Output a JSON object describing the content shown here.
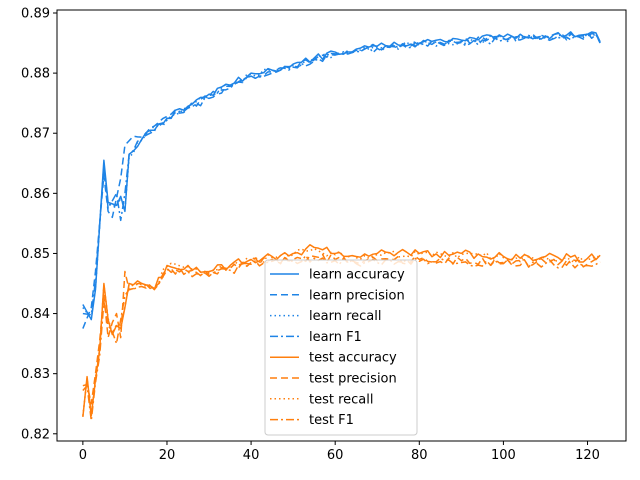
{
  "chart_data": {
    "type": "line",
    "title": "",
    "xlabel": "",
    "ylabel": "",
    "xlim": [
      -6.15,
      129.15
    ],
    "ylim": [
      0.8188,
      0.8905
    ],
    "xticks": [
      0,
      20,
      40,
      60,
      80,
      100,
      120
    ],
    "yticks": [
      0.82,
      0.83,
      0.84,
      0.85,
      0.86,
      0.87,
      0.88,
      0.89
    ],
    "xtick_labels": [
      "0",
      "20",
      "40",
      "60",
      "80",
      "100",
      "120"
    ],
    "ytick_labels": [
      "0.82",
      "0.83",
      "0.84",
      "0.85",
      "0.86",
      "0.87",
      "0.88",
      "0.89"
    ],
    "grid": false,
    "legend_position": "lower-center",
    "x_range": [
      0,
      123
    ],
    "series": [
      {
        "name": "learn accuracy",
        "group": "learn",
        "color": "#1f84e6",
        "dash": "solid",
        "seed": 1,
        "anchors": [
          [
            0,
            0.8415
          ],
          [
            2,
            0.839
          ],
          [
            3,
            0.844
          ],
          [
            5,
            0.8655
          ],
          [
            6,
            0.8585
          ],
          [
            8,
            0.858
          ],
          [
            9,
            0.8595
          ],
          [
            10,
            0.857
          ],
          [
            11,
            0.8665
          ],
          [
            14,
            0.869
          ],
          [
            16,
            0.8705
          ],
          [
            20,
            0.8725
          ],
          [
            25,
            0.8745
          ],
          [
            30,
            0.8765
          ],
          [
            35,
            0.878
          ],
          [
            40,
            0.88
          ],
          [
            45,
            0.8805
          ],
          [
            50,
            0.8815
          ],
          [
            55,
            0.8825
          ],
          [
            60,
            0.8835
          ],
          [
            65,
            0.884
          ],
          [
            70,
            0.8845
          ],
          [
            80,
            0.885
          ],
          [
            90,
            0.8855
          ],
          [
            100,
            0.886
          ],
          [
            110,
            0.8862
          ],
          [
            118,
            0.8863
          ],
          [
            122,
            0.8867
          ],
          [
            123,
            0.8852
          ]
        ]
      },
      {
        "name": "learn precision",
        "group": "learn",
        "color": "#1f84e6",
        "dash": "7,4",
        "seed": 2,
        "anchors": [
          [
            0,
            0.8375
          ],
          [
            2,
            0.841
          ],
          [
            3,
            0.847
          ],
          [
            5,
            0.863
          ],
          [
            6,
            0.857
          ],
          [
            7,
            0.856
          ],
          [
            9,
            0.8625
          ],
          [
            10,
            0.868
          ],
          [
            12,
            0.8695
          ],
          [
            15,
            0.87
          ],
          [
            18,
            0.8718
          ],
          [
            20,
            0.8728
          ],
          [
            25,
            0.8742
          ],
          [
            30,
            0.8762
          ],
          [
            35,
            0.8778
          ],
          [
            40,
            0.8795
          ],
          [
            45,
            0.8802
          ],
          [
            50,
            0.8812
          ],
          [
            55,
            0.8822
          ],
          [
            60,
            0.8832
          ],
          [
            65,
            0.8838
          ],
          [
            70,
            0.8843
          ],
          [
            80,
            0.8848
          ],
          [
            90,
            0.8852
          ],
          [
            100,
            0.8857
          ],
          [
            110,
            0.886
          ],
          [
            118,
            0.8862
          ],
          [
            122,
            0.8865
          ],
          [
            123,
            0.885
          ]
        ]
      },
      {
        "name": "learn recall",
        "group": "learn",
        "color": "#1f84e6",
        "dash": "1.5,3",
        "seed": 3,
        "anchors": [
          [
            0,
            0.841
          ],
          [
            2,
            0.8392
          ],
          [
            3,
            0.8442
          ],
          [
            5,
            0.865
          ],
          [
            6,
            0.8582
          ],
          [
            8,
            0.8578
          ],
          [
            9,
            0.8592
          ],
          [
            10,
            0.8572
          ],
          [
            11,
            0.866
          ],
          [
            14,
            0.8688
          ],
          [
            16,
            0.8703
          ],
          [
            20,
            0.8722
          ],
          [
            25,
            0.8743
          ],
          [
            30,
            0.8763
          ],
          [
            35,
            0.8778
          ],
          [
            40,
            0.8798
          ],
          [
            45,
            0.8803
          ],
          [
            50,
            0.8813
          ],
          [
            55,
            0.8823
          ],
          [
            60,
            0.8833
          ],
          [
            65,
            0.8838
          ],
          [
            70,
            0.8843
          ],
          [
            80,
            0.8848
          ],
          [
            90,
            0.8853
          ],
          [
            100,
            0.8858
          ],
          [
            110,
            0.886
          ],
          [
            118,
            0.8861
          ],
          [
            122,
            0.8865
          ],
          [
            123,
            0.8851
          ]
        ]
      },
      {
        "name": "learn F1",
        "group": "learn",
        "color": "#1f84e6",
        "dash": "8,3,2,3",
        "seed": 4,
        "anchors": [
          [
            0,
            0.84
          ],
          [
            2,
            0.8398
          ],
          [
            3,
            0.8455
          ],
          [
            5,
            0.8645
          ],
          [
            6,
            0.8575
          ],
          [
            8,
            0.86
          ],
          [
            9,
            0.8555
          ],
          [
            10,
            0.86
          ],
          [
            11,
            0.8665
          ],
          [
            14,
            0.869
          ],
          [
            16,
            0.87
          ],
          [
            20,
            0.8722
          ],
          [
            25,
            0.8742
          ],
          [
            30,
            0.8758
          ],
          [
            35,
            0.8775
          ],
          [
            40,
            0.8795
          ],
          [
            45,
            0.88
          ],
          [
            50,
            0.881
          ],
          [
            55,
            0.882
          ],
          [
            60,
            0.883
          ],
          [
            65,
            0.8836
          ],
          [
            70,
            0.8841
          ],
          [
            80,
            0.8846
          ],
          [
            90,
            0.8851
          ],
          [
            100,
            0.8855
          ],
          [
            110,
            0.8858
          ],
          [
            118,
            0.886
          ],
          [
            122,
            0.8864
          ],
          [
            123,
            0.885
          ]
        ]
      },
      {
        "name": "test accuracy",
        "group": "test",
        "color": "#ff7f0e",
        "dash": "solid",
        "seed": 5,
        "anchors": [
          [
            0,
            0.8228
          ],
          [
            1,
            0.8295
          ],
          [
            2,
            0.823
          ],
          [
            3,
            0.829
          ],
          [
            4,
            0.834
          ],
          [
            5,
            0.845
          ],
          [
            6,
            0.839
          ],
          [
            7,
            0.8365
          ],
          [
            8,
            0.838
          ],
          [
            9,
            0.8375
          ],
          [
            10,
            0.841
          ],
          [
            11,
            0.845
          ],
          [
            14,
            0.845
          ],
          [
            17,
            0.844
          ],
          [
            20,
            0.848
          ],
          [
            25,
            0.848
          ],
          [
            30,
            0.847
          ],
          [
            35,
            0.848
          ],
          [
            40,
            0.849
          ],
          [
            45,
            0.8495
          ],
          [
            50,
            0.85
          ],
          [
            55,
            0.851
          ],
          [
            60,
            0.85
          ],
          [
            65,
            0.8495
          ],
          [
            70,
            0.85
          ],
          [
            80,
            0.85
          ],
          [
            90,
            0.85
          ],
          [
            100,
            0.8495
          ],
          [
            110,
            0.8495
          ],
          [
            120,
            0.8492
          ],
          [
            123,
            0.8497
          ]
        ]
      },
      {
        "name": "test precision",
        "group": "test",
        "color": "#ff7f0e",
        "dash": "7,4",
        "seed": 6,
        "anchors": [
          [
            0,
            0.828
          ],
          [
            1,
            0.8282
          ],
          [
            2,
            0.825
          ],
          [
            3,
            0.83
          ],
          [
            4,
            0.8355
          ],
          [
            5,
            0.843
          ],
          [
            6,
            0.836
          ],
          [
            7,
            0.8385
          ],
          [
            8,
            0.84
          ],
          [
            9,
            0.836
          ],
          [
            10,
            0.847
          ],
          [
            11,
            0.844
          ],
          [
            14,
            0.845
          ],
          [
            17,
            0.8445
          ],
          [
            20,
            0.8475
          ],
          [
            25,
            0.847
          ],
          [
            30,
            0.8465
          ],
          [
            35,
            0.8475
          ],
          [
            40,
            0.8485
          ],
          [
            45,
            0.849
          ],
          [
            50,
            0.849
          ],
          [
            55,
            0.8495
          ],
          [
            60,
            0.849
          ],
          [
            65,
            0.8485
          ],
          [
            70,
            0.8488
          ],
          [
            80,
            0.849
          ],
          [
            90,
            0.8488
          ],
          [
            100,
            0.8485
          ],
          [
            110,
            0.8485
          ],
          [
            120,
            0.8482
          ],
          [
            123,
            0.8488
          ]
        ]
      },
      {
        "name": "test recall",
        "group": "test",
        "color": "#ff7f0e",
        "dash": "1.5,3",
        "seed": 7,
        "anchors": [
          [
            0,
            0.823
          ],
          [
            1,
            0.8292
          ],
          [
            2,
            0.8232
          ],
          [
            3,
            0.8292
          ],
          [
            4,
            0.8342
          ],
          [
            5,
            0.8448
          ],
          [
            6,
            0.8392
          ],
          [
            7,
            0.8367
          ],
          [
            8,
            0.8382
          ],
          [
            9,
            0.8377
          ],
          [
            10,
            0.8412
          ],
          [
            11,
            0.8448
          ],
          [
            14,
            0.8448
          ],
          [
            17,
            0.8442
          ],
          [
            20,
            0.8478
          ],
          [
            25,
            0.8478
          ],
          [
            30,
            0.8468
          ],
          [
            35,
            0.8478
          ],
          [
            40,
            0.8488
          ],
          [
            45,
            0.8493
          ],
          [
            50,
            0.8498
          ],
          [
            55,
            0.8508
          ],
          [
            60,
            0.8498
          ],
          [
            65,
            0.8493
          ],
          [
            70,
            0.8498
          ],
          [
            80,
            0.8498
          ],
          [
            90,
            0.8498
          ],
          [
            100,
            0.8493
          ],
          [
            110,
            0.8493
          ],
          [
            120,
            0.849
          ],
          [
            123,
            0.8495
          ]
        ]
      },
      {
        "name": "test F1",
        "group": "test",
        "color": "#ff7f0e",
        "dash": "8,3,2,3",
        "seed": 8,
        "anchors": [
          [
            0,
            0.8272
          ],
          [
            1,
            0.828
          ],
          [
            2,
            0.8222
          ],
          [
            3,
            0.8285
          ],
          [
            4,
            0.833
          ],
          [
            5,
            0.842
          ],
          [
            6,
            0.838
          ],
          [
            7,
            0.837
          ],
          [
            8,
            0.835
          ],
          [
            9,
            0.839
          ],
          [
            10,
            0.843
          ],
          [
            11,
            0.844
          ],
          [
            14,
            0.8445
          ],
          [
            17,
            0.844
          ],
          [
            20,
            0.8472
          ],
          [
            25,
            0.847
          ],
          [
            30,
            0.8462
          ],
          [
            35,
            0.8472
          ],
          [
            40,
            0.8482
          ],
          [
            45,
            0.8487
          ],
          [
            50,
            0.8488
          ],
          [
            55,
            0.8492
          ],
          [
            60,
            0.8488
          ],
          [
            65,
            0.8483
          ],
          [
            70,
            0.8485
          ],
          [
            80,
            0.8487
          ],
          [
            90,
            0.8485
          ],
          [
            100,
            0.8483
          ],
          [
            110,
            0.8483
          ],
          [
            120,
            0.848
          ],
          [
            123,
            0.8486
          ]
        ]
      }
    ]
  }
}
